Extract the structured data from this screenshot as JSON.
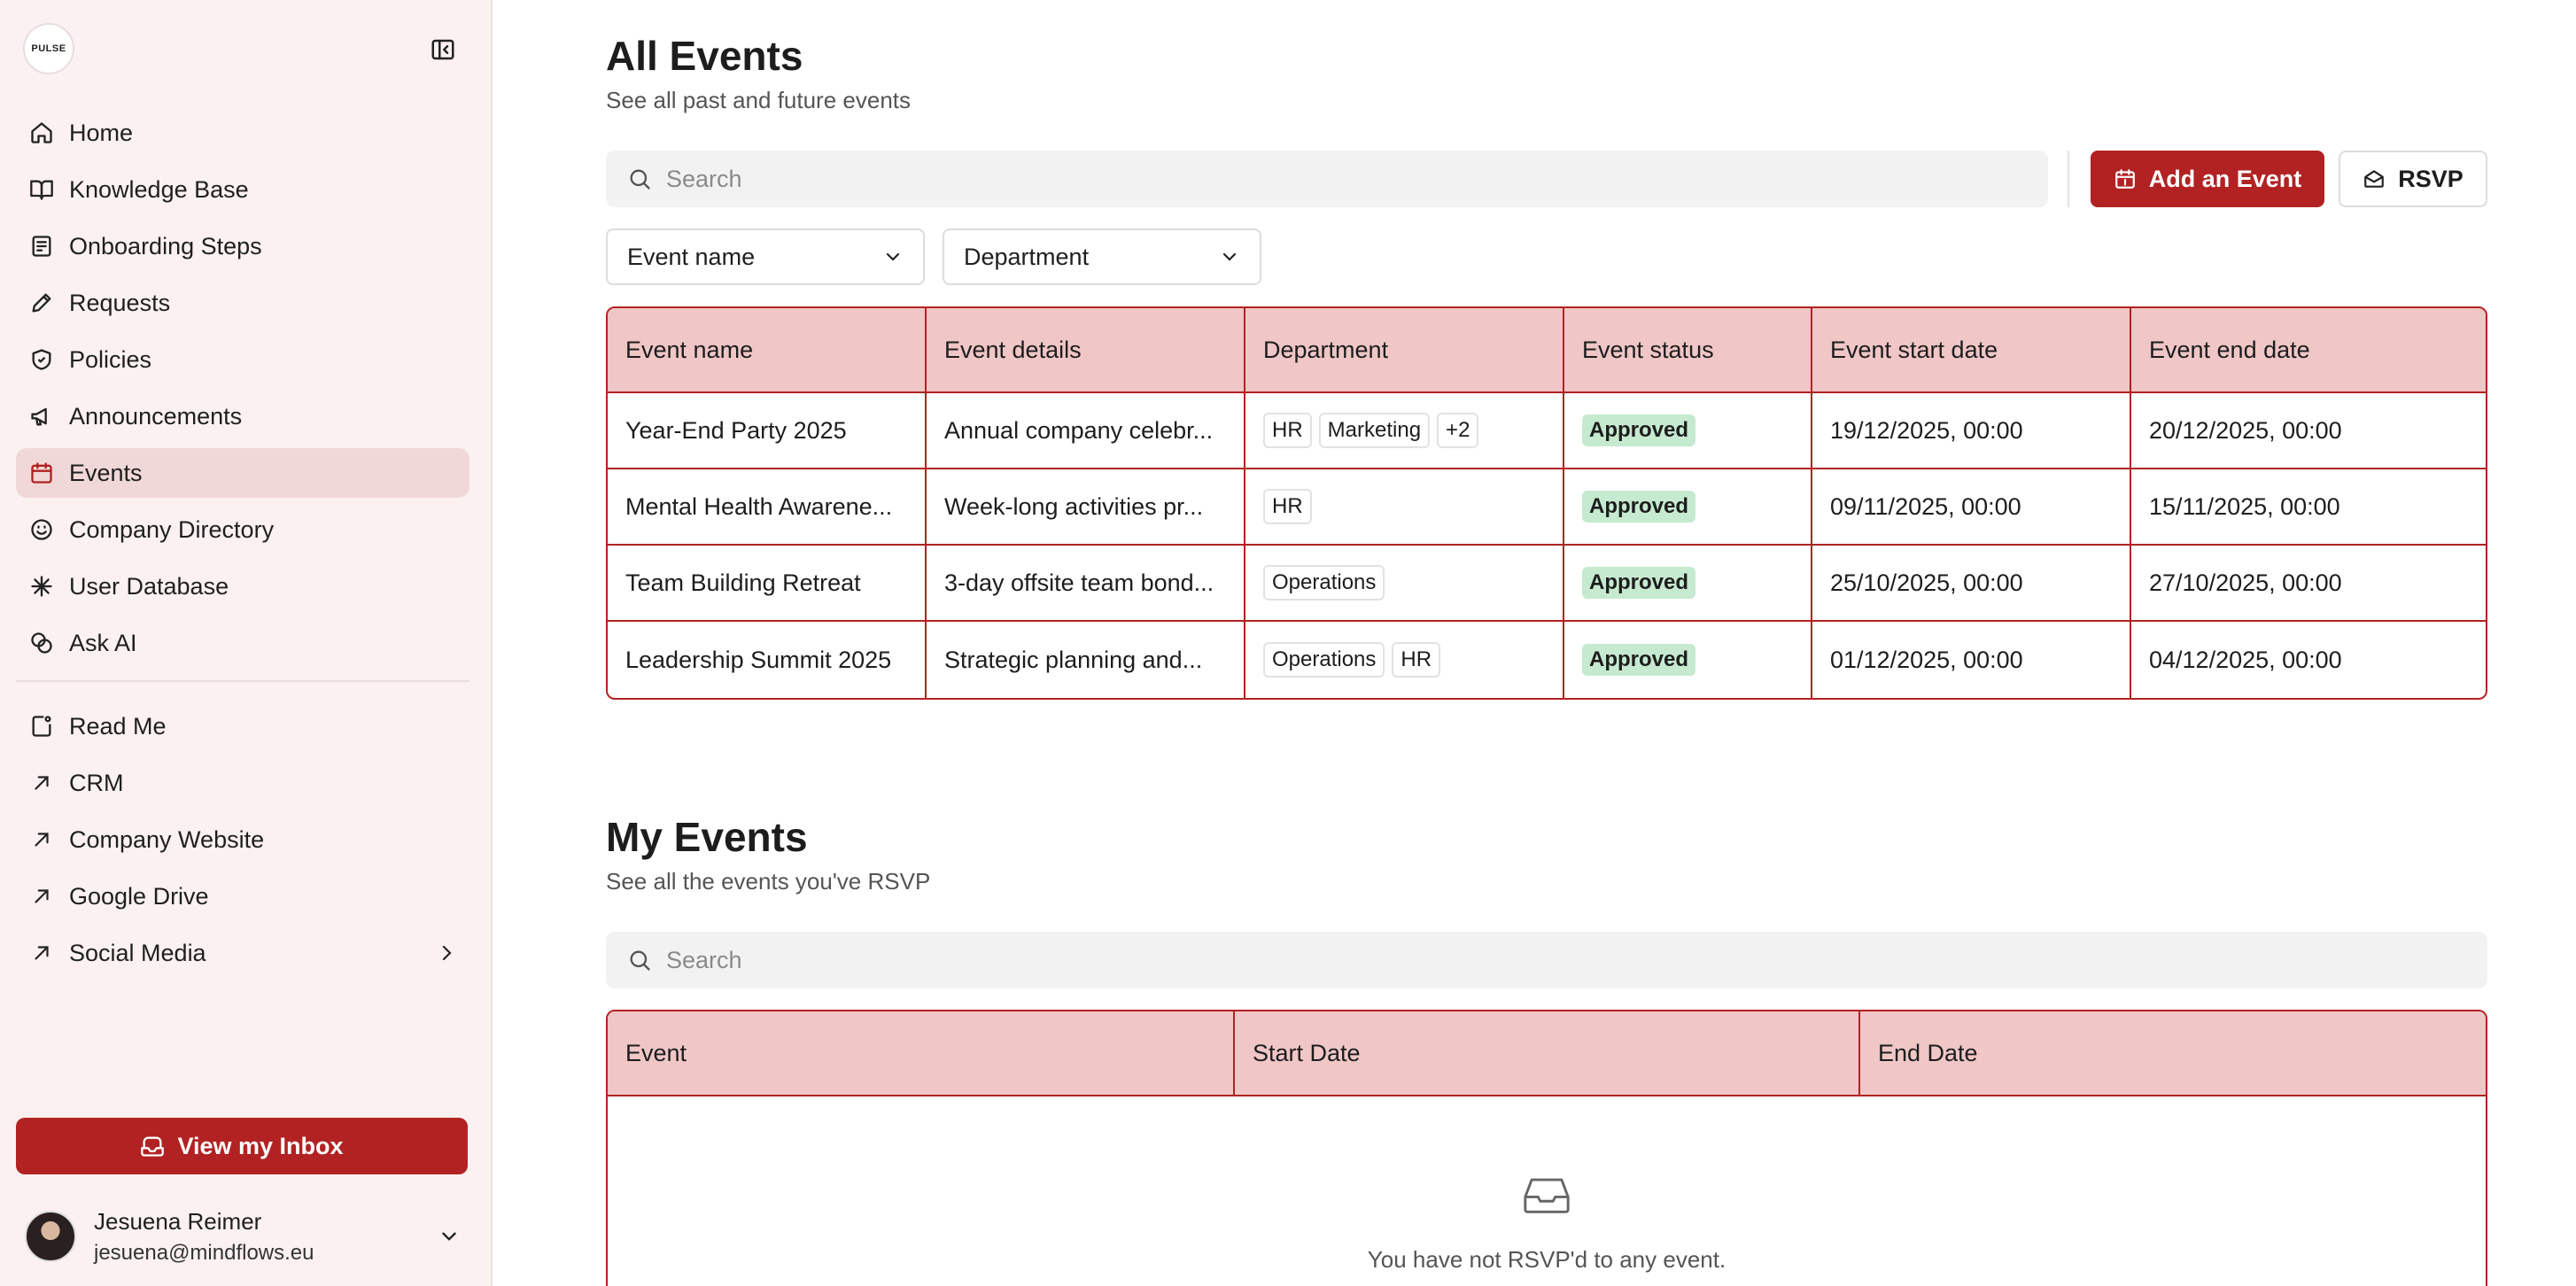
{
  "app": {
    "logo_text": "PULSE"
  },
  "sidebar": {
    "items": [
      {
        "label": "Home",
        "icon": "home-icon"
      },
      {
        "label": "Knowledge Base",
        "icon": "book-icon"
      },
      {
        "label": "Onboarding Steps",
        "icon": "checklist-icon"
      },
      {
        "label": "Requests",
        "icon": "pencil-icon"
      },
      {
        "label": "Policies",
        "icon": "shield-icon"
      },
      {
        "label": "Announcements",
        "icon": "megaphone-icon"
      },
      {
        "label": "Events",
        "icon": "calendar-icon",
        "active": true
      },
      {
        "label": "Company Directory",
        "icon": "smiley-icon"
      },
      {
        "label": "User Database",
        "icon": "asterisk-icon"
      },
      {
        "label": "Ask AI",
        "icon": "ai-icon"
      }
    ],
    "links": [
      {
        "label": "Read Me",
        "icon": "readme-icon"
      },
      {
        "label": "CRM",
        "icon": "external-arrow-icon"
      },
      {
        "label": "Company Website",
        "icon": "external-arrow-icon"
      },
      {
        "label": "Google Drive",
        "icon": "external-arrow-icon"
      },
      {
        "label": "Social Media",
        "icon": "external-arrow-icon"
      }
    ],
    "inbox_button": "View my Inbox",
    "user": {
      "name": "Jesuena Reimer",
      "email": "jesuena@mindflows.eu"
    }
  },
  "all_events": {
    "title": "All Events",
    "subtitle": "See all past and future events",
    "search_placeholder": "Search",
    "add_button": "Add an Event",
    "rsvp_button": "RSVP",
    "filters": {
      "event_name": "Event name",
      "department": "Department"
    },
    "columns": [
      "Event name",
      "Event details",
      "Department",
      "Event status",
      "Event start date",
      "Event end date"
    ],
    "rows": [
      {
        "name": "Year-End Party 2025",
        "details": "Annual company celebr...",
        "departments": [
          "HR",
          "Marketing",
          "+2"
        ],
        "status": "Approved",
        "start": "19/12/2025, 00:00",
        "end": "20/12/2025, 00:00"
      },
      {
        "name": "Mental Health Awarene...",
        "details": "Week-long activities pr...",
        "departments": [
          "HR"
        ],
        "status": "Approved",
        "start": "09/11/2025, 00:00",
        "end": "15/11/2025, 00:00"
      },
      {
        "name": "Team Building Retreat",
        "details": "3-day offsite team bond...",
        "departments": [
          "Operations"
        ],
        "status": "Approved",
        "start": "25/10/2025, 00:00",
        "end": "27/10/2025, 00:00"
      },
      {
        "name": "Leadership Summit 2025",
        "details": "Strategic planning and...",
        "departments": [
          "Operations",
          "HR"
        ],
        "status": "Approved",
        "start": "01/12/2025, 00:00",
        "end": "04/12/2025, 00:00"
      }
    ]
  },
  "my_events": {
    "title": "My Events",
    "subtitle": "See all the events you've RSVP",
    "search_placeholder": "Search",
    "columns": [
      "Event",
      "Start Date",
      "End Date"
    ],
    "empty_text": "You have not RSVP'd to any event."
  },
  "colors": {
    "accent": "#b22222",
    "header_bg": "#f0c6c6",
    "sidebar_bg": "#fbf1f1",
    "status_bg": "#c6ead0"
  }
}
